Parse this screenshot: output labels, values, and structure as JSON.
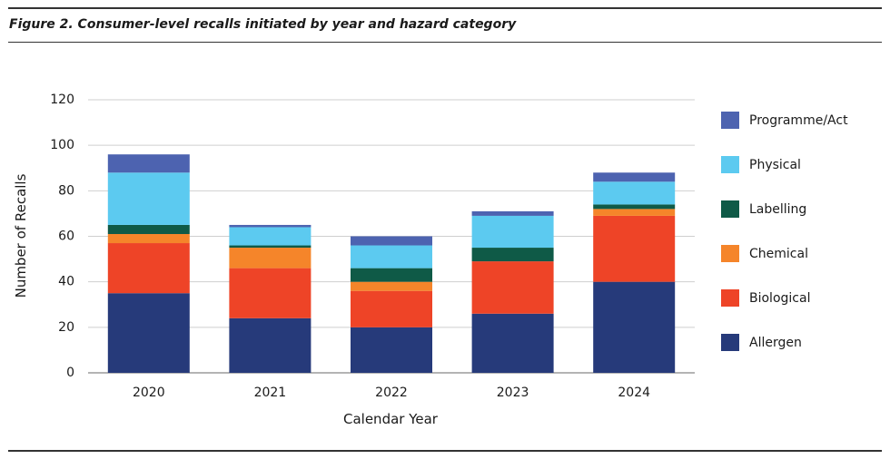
{
  "figure": {
    "title": "Figure 2. Consumer-level recalls initiated by year and hazard category"
  },
  "chart_data": {
    "type": "bar",
    "stacked": true,
    "categories": [
      "2020",
      "2021",
      "2022",
      "2023",
      "2024"
    ],
    "series": [
      {
        "name": "Allergen",
        "color": "#263a7a",
        "values": [
          35,
          24,
          20,
          26,
          40
        ]
      },
      {
        "name": "Biological",
        "color": "#ee4427",
        "values": [
          22,
          22,
          16,
          23,
          29
        ]
      },
      {
        "name": "Chemical",
        "color": "#f5852a",
        "values": [
          4,
          9,
          4,
          0,
          3
        ]
      },
      {
        "name": "Labelling",
        "color": "#0f5a47",
        "values": [
          4,
          1,
          6,
          6,
          2
        ]
      },
      {
        "name": "Physical",
        "color": "#5ccaf0",
        "values": [
          23,
          8,
          10,
          14,
          10
        ]
      },
      {
        "name": "Programme/Act",
        "color": "#4d63b0",
        "values": [
          8,
          1,
          4,
          2,
          4
        ]
      }
    ],
    "xlabel": "Calendar Year",
    "ylabel": "Number of Recalls",
    "ylim": [
      0,
      120
    ],
    "yticks": [
      0,
      20,
      40,
      60,
      80,
      100,
      120
    ],
    "grid": true,
    "legend_position": "right"
  }
}
